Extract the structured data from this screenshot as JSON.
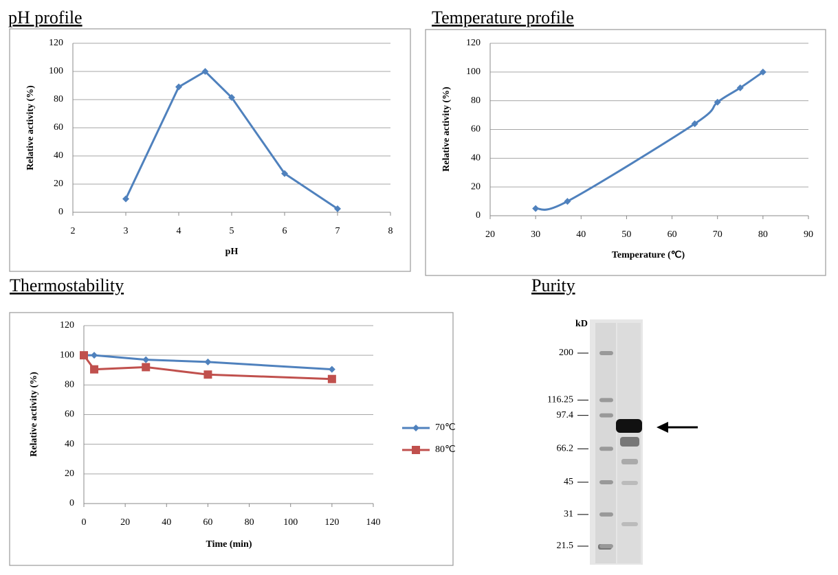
{
  "chart_data": [
    {
      "type": "line",
      "title": "pH profile",
      "x_label": "pH",
      "y_label": "Relative activity (%)",
      "x": [
        3,
        4,
        4.5,
        5,
        6,
        7
      ],
      "values": [
        9.5,
        89,
        100,
        81.5,
        27.5,
        2.5
      ],
      "color": "#4f81bd",
      "marker": "diamond",
      "xlim": [
        2,
        8
      ],
      "xticks": [
        2,
        3,
        4,
        5,
        6,
        7,
        8
      ],
      "ylim": [
        0,
        120
      ],
      "yticks": [
        0,
        20,
        40,
        60,
        80,
        100,
        120
      ],
      "grid": true
    },
    {
      "type": "line",
      "title": "Temperature profile",
      "x_label": "Temperature (℃)",
      "y_label": "Relative activity (%)",
      "x": [
        30,
        37,
        65,
        70,
        75,
        80
      ],
      "values": [
        5,
        10,
        64,
        79,
        89,
        100
      ],
      "color": "#4f81bd",
      "marker": "diamond",
      "smooth": true,
      "xlim": [
        20,
        90
      ],
      "xticks": [
        20,
        30,
        40,
        50,
        60,
        70,
        80,
        90
      ],
      "ylim": [
        0,
        120
      ],
      "yticks": [
        0,
        20,
        40,
        60,
        80,
        100,
        120
      ],
      "grid": true
    },
    {
      "type": "line",
      "title": "Thermostability",
      "x_label": "Time (min)",
      "y_label": "Relative activity (%)",
      "x": [
        0,
        5,
        30,
        60,
        120
      ],
      "series": [
        {
          "name": "70℃",
          "color": "#4f81bd",
          "marker": "diamond",
          "values": [
            100,
            100,
            97,
            95.5,
            90.5
          ]
        },
        {
          "name": "80℃",
          "color": "#c0504d",
          "marker": "square",
          "values": [
            100,
            90.5,
            92,
            87,
            84
          ]
        }
      ],
      "xlim": [
        0,
        140
      ],
      "xticks": [
        0,
        20,
        40,
        60,
        80,
        100,
        120,
        140
      ],
      "ylim": [
        0,
        120
      ],
      "yticks": [
        0,
        20,
        40,
        60,
        80,
        100,
        120
      ],
      "grid": true,
      "legend": "right"
    },
    {
      "type": "gel",
      "title": "Purity",
      "y_label": "kD",
      "markers": [
        200,
        116.25,
        97.4,
        66.2,
        45,
        31,
        21.5
      ],
      "ylim": [
        20,
        220
      ],
      "log_scale": true
    }
  ]
}
